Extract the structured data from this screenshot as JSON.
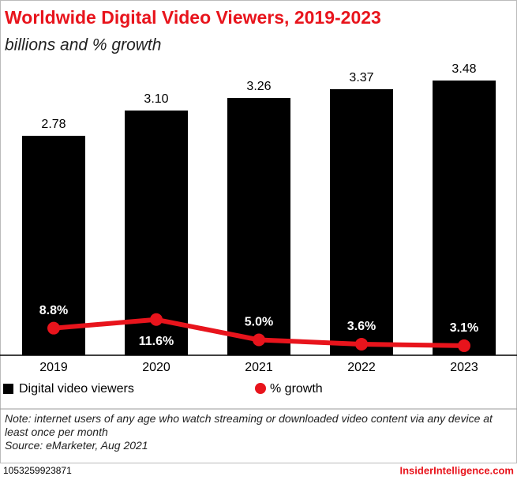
{
  "chart_data": {
    "type": "bar",
    "title": "Worldwide Digital Video Viewers, 2019-2023",
    "subtitle": "billions and % growth",
    "categories": [
      "2019",
      "2020",
      "2021",
      "2022",
      "2023"
    ],
    "series": [
      {
        "name": "Digital video viewers",
        "type": "bar",
        "color": "#000000",
        "values": [
          2.78,
          3.1,
          3.26,
          3.37,
          3.48
        ],
        "value_labels": [
          "2.78",
          "3.10",
          "3.26",
          "3.37",
          "3.48"
        ]
      },
      {
        "name": "% growth",
        "type": "line",
        "axis": "y2",
        "color": "#e8141c",
        "values": [
          8.8,
          11.6,
          5.0,
          3.6,
          3.1
        ],
        "value_labels": [
          "8.8%",
          "11.6%",
          "5.0%",
          "3.6%",
          "3.1%"
        ]
      }
    ],
    "ylim": [
      0,
      3.65
    ],
    "y2lim": [
      0,
      93.6
    ],
    "note": "Note: internet users of any age who watch streaming or downloaded video content via any device at least once per month",
    "source": "Source: eMarketer, Aug 2021",
    "chart_id": "1053259923871",
    "brand": "InsiderIntelligence.com"
  }
}
